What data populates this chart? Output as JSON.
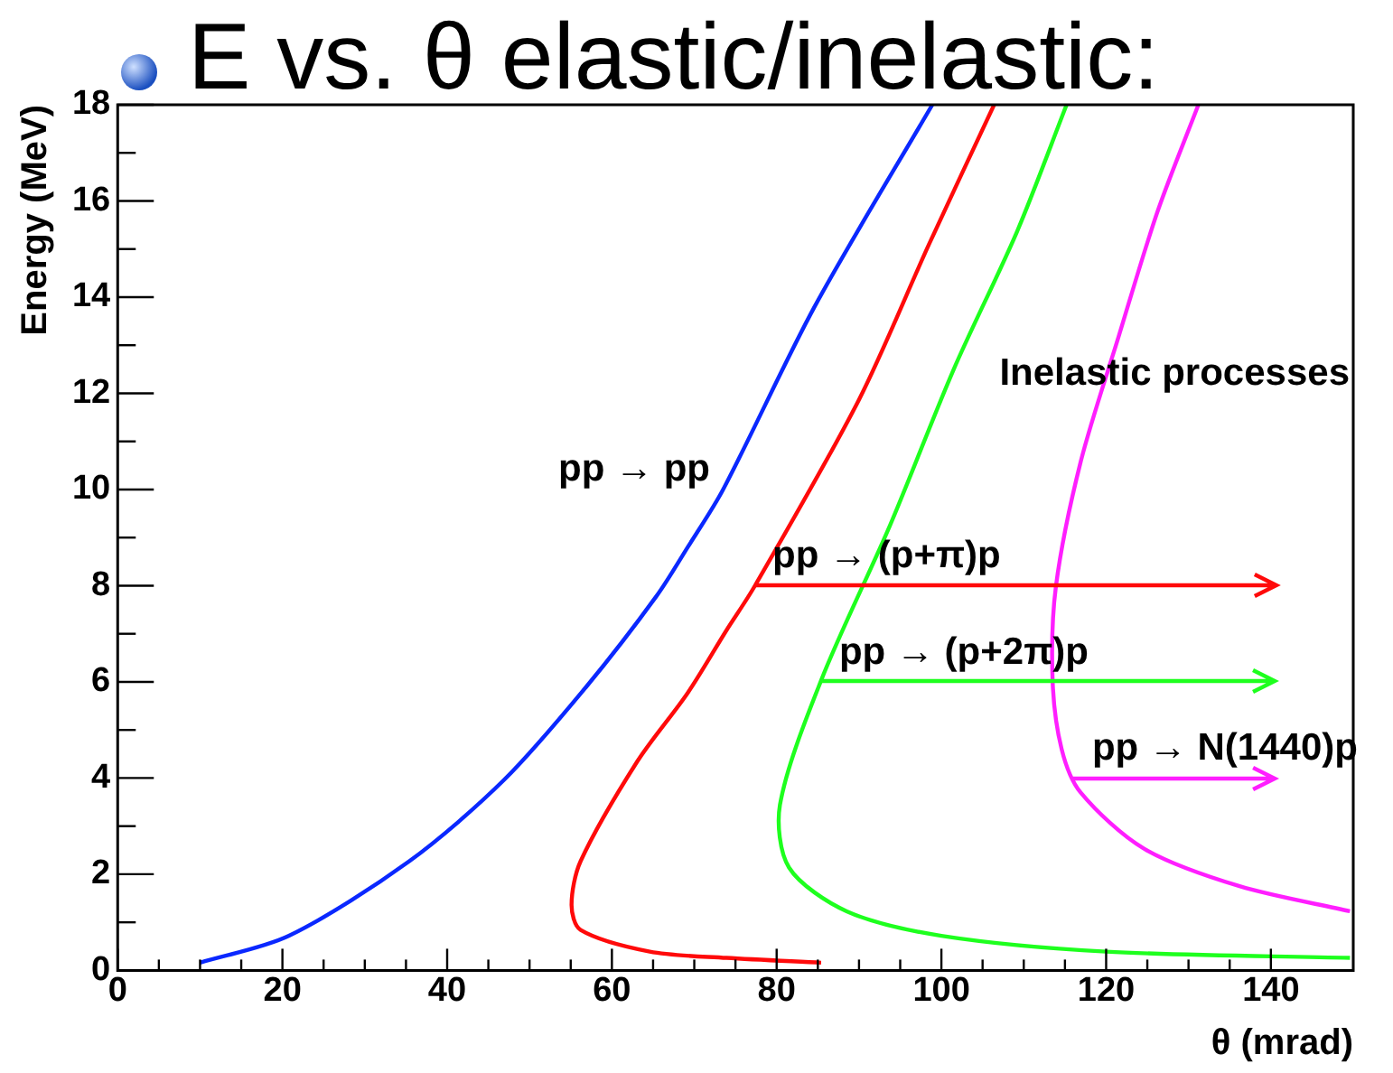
{
  "chart_data": {
    "type": "line",
    "title": "E vs. θ elastic/inelastic:",
    "xlabel": "θ (mrad)",
    "ylabel": "Energy (MeV)",
    "xlim": [
      0,
      150
    ],
    "ylim": [
      0,
      18
    ],
    "xticks": [
      0,
      20,
      40,
      60,
      80,
      100,
      120,
      140
    ],
    "yticks": [
      0,
      2,
      4,
      6,
      8,
      10,
      12,
      14,
      16,
      18
    ],
    "grid": false,
    "legend": false,
    "marker": "none",
    "line_style": "solid",
    "series": [
      {
        "color": "#0a28ff",
        "x": [
          10,
          20.8,
          35.4,
          46.9,
          56.9,
          65.4,
          69.2,
          73.5,
          84.6,
          98.9
        ],
        "values": [
          0.16,
          0.72,
          2.27,
          3.96,
          5.9,
          7.78,
          8.8,
          10,
          13.8,
          18
        ]
      },
      {
        "color": "#ff0a0a",
        "x": [
          85.4,
          73.9,
          64.6,
          56.2,
          55.1,
          56.2,
          63.1,
          69.2,
          73.9,
          77.3,
          90,
          98.5,
          106.4
        ],
        "values": [
          0.16,
          0.26,
          0.39,
          0.84,
          1.36,
          2.27,
          4.35,
          5.77,
          7.07,
          7.98,
          11.87,
          15.1,
          18
        ]
      },
      {
        "color": "#1eff1e",
        "x": [
          149.6,
          120,
          100,
          88.5,
          81.5,
          80.4,
          85.4,
          93.8,
          101.5,
          109.2,
          115.2
        ],
        "values": [
          0.26,
          0.39,
          0.72,
          1.23,
          2.14,
          3.44,
          6.03,
          9.27,
          12.5,
          15.37,
          18
        ]
      },
      {
        "color": "#ff1eff",
        "x": [
          149.6,
          136.2,
          124.6,
          116.9,
          114.6,
          113.5,
          113.9,
          116.9,
          121.5,
          126.2,
          131.2
        ],
        "values": [
          1.23,
          1.75,
          2.53,
          3.7,
          4.6,
          6.03,
          7.98,
          10.57,
          13.17,
          15.76,
          18
        ]
      }
    ],
    "annotations": [
      "pp → pp",
      "Inelastic processes",
      {
        "text": "pp → (p+π)p",
        "x": 77.3,
        "y": 8
      },
      {
        "text": "pp → (p+2π)p",
        "x": 85.4,
        "y": 6
      },
      {
        "text": "pp → N(1440)p",
        "x": 116.1,
        "y": 4
      }
    ]
  }
}
